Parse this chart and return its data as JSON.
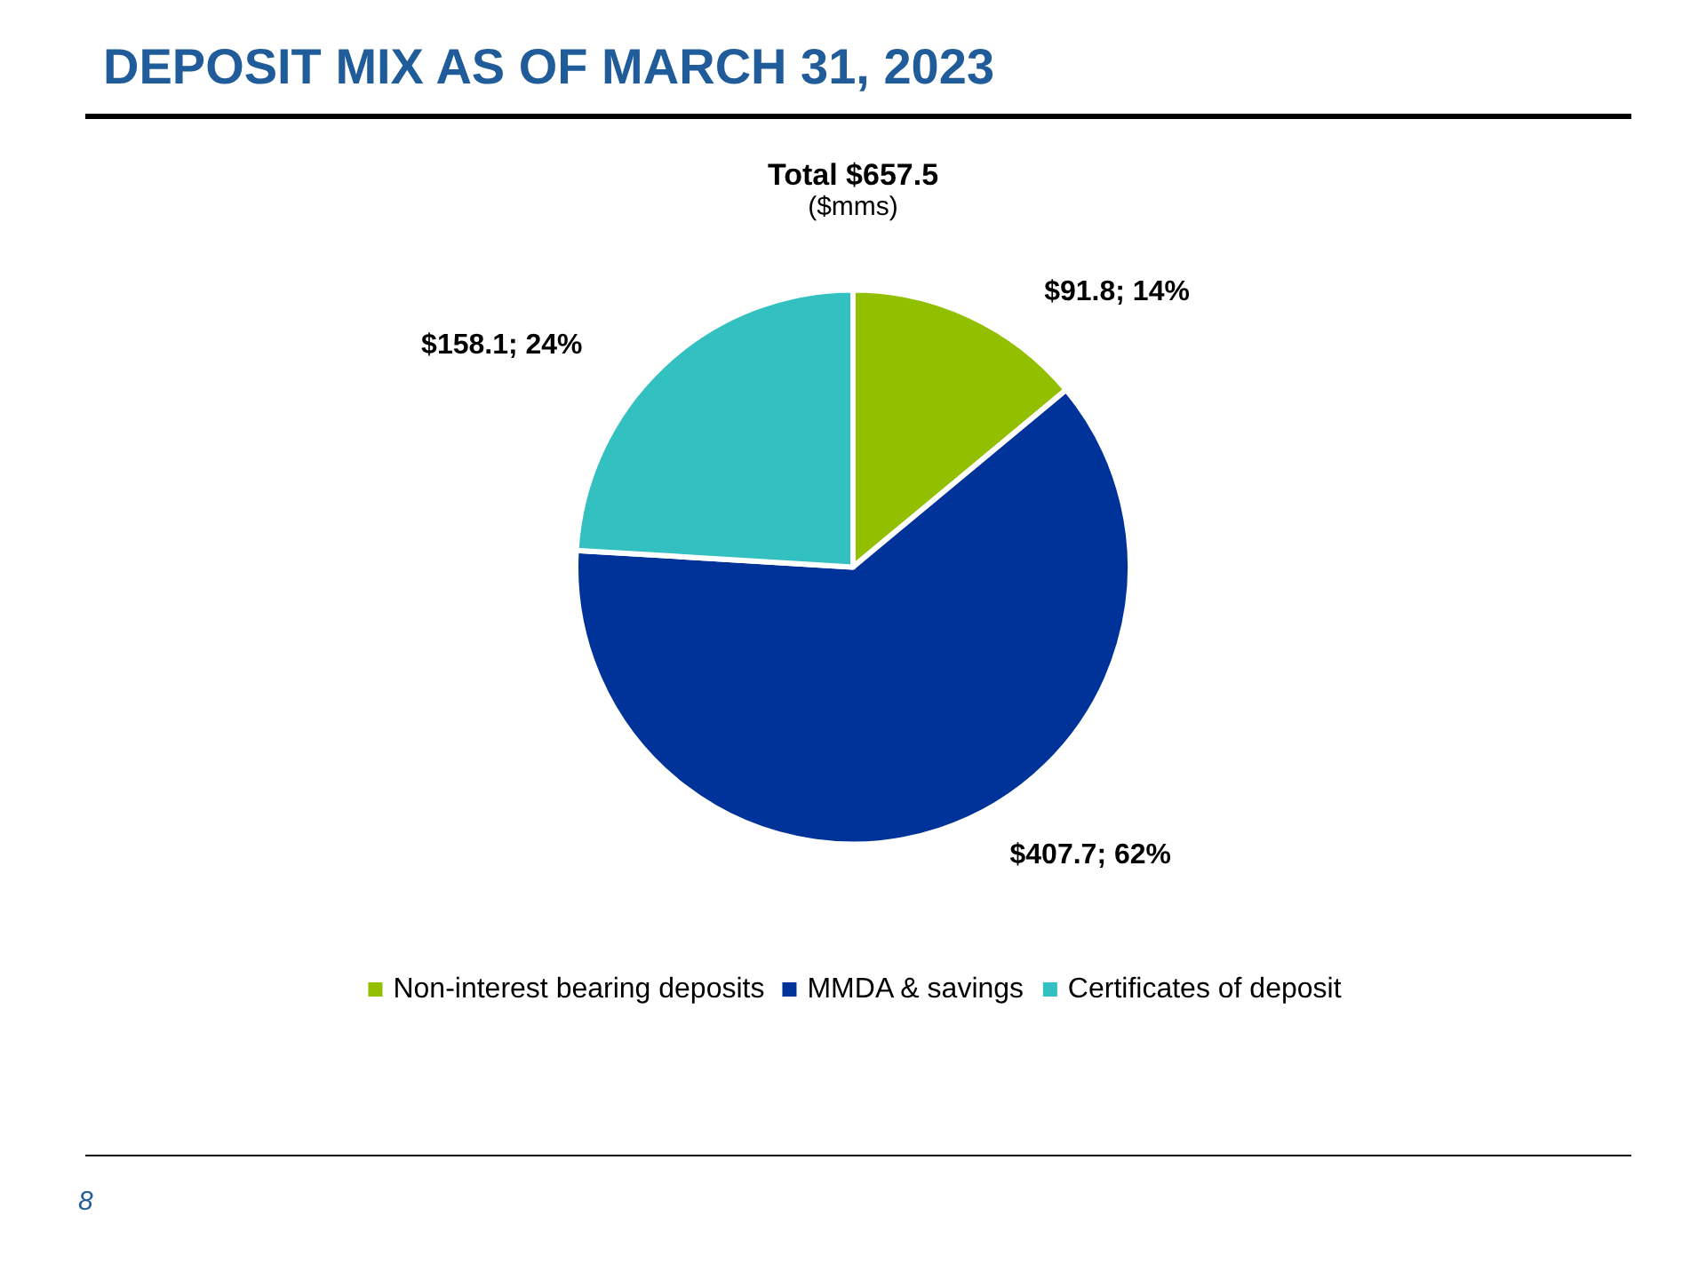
{
  "chart_data": {
    "type": "pie",
    "title": "DEPOSIT MIX AS OF MARCH 31, 2023",
    "subtitle": "Total $657.5",
    "annotations": [
      "($mms)",
      "8"
    ],
    "categories": [
      "Non-interest bearing deposits",
      "MMDA & savings",
      "Certificates of deposit"
    ],
    "values": [
      91.8,
      407.7,
      158.1
    ],
    "colors": [
      "#92c000",
      "#003399",
      "#33c0c0"
    ],
    "value_labels": [
      "$91.8; 14%",
      "$407.7; 62%",
      "$158.1; 24%"
    ],
    "legend": "bottom"
  }
}
